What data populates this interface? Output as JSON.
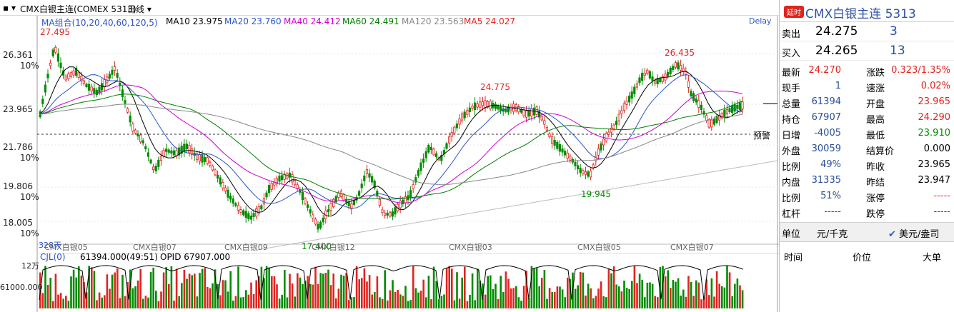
{
  "toolbar": {
    "contract": "CMX白银主连(COMEX 5313)",
    "period": "日线"
  },
  "indicators": {
    "group_label": "MA组合(10,20,40,60,120,5)",
    "ma10": "MA10 23.975",
    "ma20": "MA20 23.760",
    "ma40": "MA40 24.412",
    "ma60": "MA60 24.491",
    "ma120": "MA120 23.563",
    "ma5": "MA5 24.027",
    "delay": "Delay"
  },
  "y_axis": [
    {
      "price": "26.361",
      "pct": "10%"
    },
    {
      "price": "23.965",
      "pct": ""
    },
    {
      "price": "21.786",
      "pct": "10%"
    },
    {
      "price": "19.806",
      "pct": "10%"
    },
    {
      "price": "18.005",
      "pct": "10%"
    }
  ],
  "annotations": {
    "high_left": "27.495",
    "mid_high": "24.775",
    "high_right": "26.435",
    "low_right": "19.945",
    "low_left": "17.400",
    "warn": "预警",
    "days": "328天"
  },
  "x_labels": [
    "CMX白银05",
    "CMX白银07",
    "CMX白银09",
    "CMX白银12",
    "CMX白银03",
    "CMX白银05",
    "CMX白银07"
  ],
  "volume": {
    "title": "CJL(0)",
    "vol": "61394.000(49:51)",
    "opid": "OPID 67907.000",
    "ytop": "12万",
    "ymid": "61000.000"
  },
  "colors": {
    "up": "#e0241f",
    "down": "#008c00",
    "ma10": "#000000",
    "ma20": "#2a55c8",
    "ma40": "#d000d0",
    "ma60": "#008000",
    "ma120": "#888888"
  },
  "quote": {
    "badge": "延时",
    "title": "CMX白银主连  5313",
    "ask_label": "卖出",
    "ask_price": "24.275",
    "ask_vol": "3",
    "bid_label": "买入",
    "bid_price": "24.265",
    "bid_vol": "13",
    "rows": [
      {
        "k1": "最新",
        "v1": "24.270",
        "c1": "red",
        "k2": "涨跌",
        "v2": "0.323/1.35%",
        "c2": "red"
      },
      {
        "k1": "现手",
        "v1": "1",
        "c1": "blue",
        "k2": "速涨",
        "v2": "0.02%",
        "c2": "red"
      },
      {
        "k1": "总量",
        "v1": "61394",
        "c1": "blue",
        "k2": "开盘",
        "v2": "23.965",
        "c2": "red"
      },
      {
        "k1": "持仓",
        "v1": "67907",
        "c1": "blue",
        "k2": "最高",
        "v2": "24.290",
        "c2": "red"
      },
      {
        "k1": "日增",
        "v1": "-4005",
        "c1": "blue",
        "k2": "最低",
        "v2": "23.910",
        "c2": "green"
      },
      {
        "k1": "外盘",
        "v1": "30059",
        "c1": "blue",
        "k2": "结算价",
        "v2": "0.000",
        "c2": "dark"
      },
      {
        "k1": "比例",
        "v1": "49%",
        "c1": "blue",
        "k2": "昨收",
        "v2": "23.965",
        "c2": "dark"
      },
      {
        "k1": "内盘",
        "v1": "31335",
        "c1": "blue",
        "k2": "昨结",
        "v2": "23.947",
        "c2": "dark"
      },
      {
        "k1": "比例",
        "v1": "51%",
        "c1": "blue",
        "k2": "涨停",
        "v2": "-----",
        "c2": "red"
      },
      {
        "k1": "杠杆",
        "v1": "-----",
        "c1": "blue",
        "k2": "跌停",
        "v2": "-----",
        "c2": "green"
      }
    ],
    "unit_label": "单位",
    "unit_value": "元/千克",
    "currency": "美元/盎司",
    "tick_time": "时间",
    "tick_price": "价位",
    "tick_volume": "大单"
  }
}
